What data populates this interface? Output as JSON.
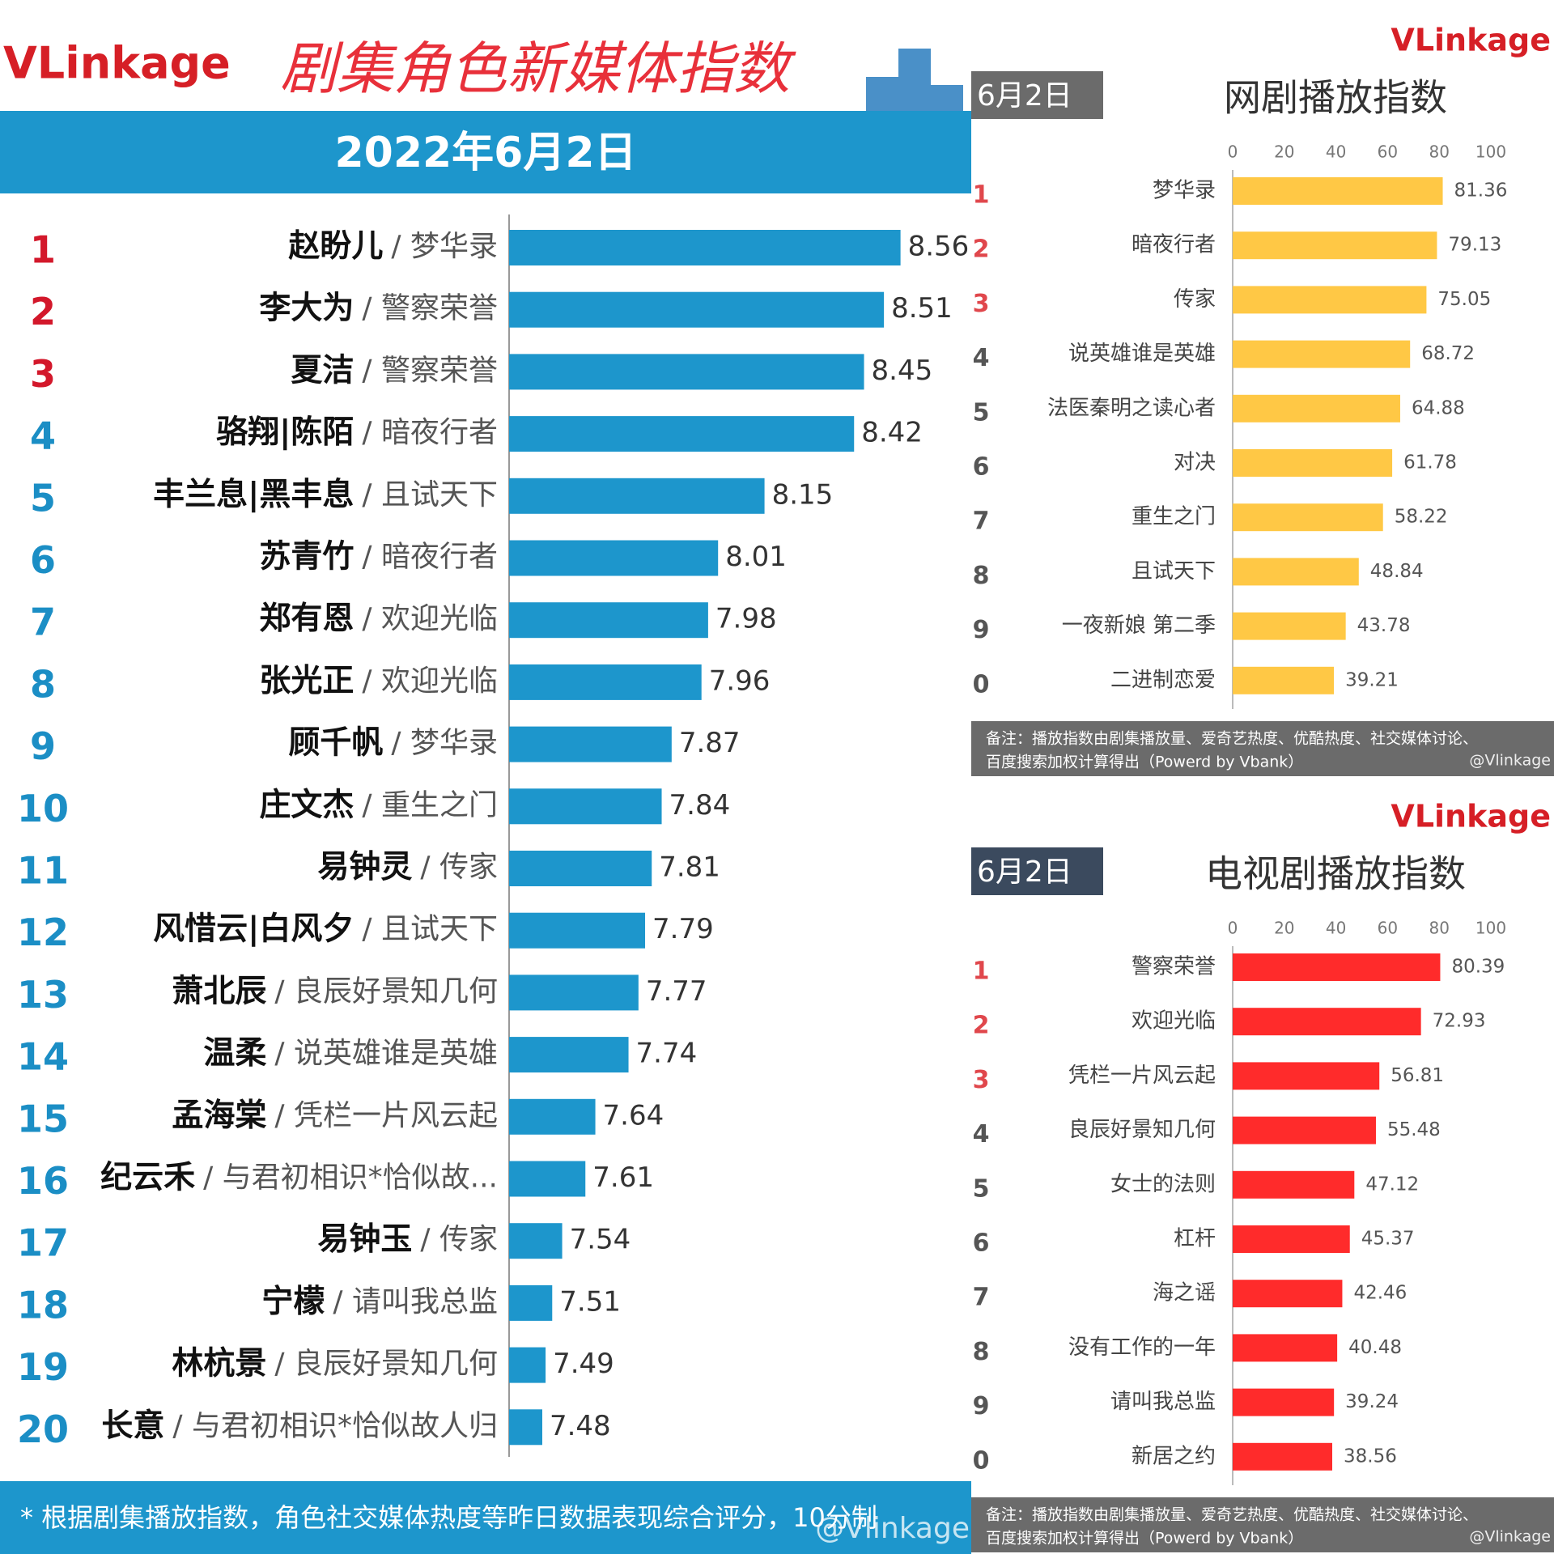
{
  "chart_data": [
    {
      "type": "bar",
      "orientation": "horizontal",
      "logo": "VLinkage",
      "title": "剧集角色新媒体指数",
      "subtitle": "2022年6月2日",
      "ranks": [
        1,
        2,
        3,
        4,
        5,
        6,
        7,
        8,
        9,
        10,
        11,
        12,
        13,
        14,
        15,
        16,
        17,
        18,
        19,
        20
      ],
      "categories": [
        "赵盼儿",
        "李大为",
        "夏洁",
        "骆翔|陈陌",
        "丰兰息|黑丰息",
        "苏青竹",
        "郑有恩",
        "张光正",
        "顾千帆",
        "庄文杰",
        "易钟灵",
        "风惜云|白风夕",
        "萧北辰",
        "温柔",
        "孟海棠",
        "纪云禾",
        "易钟玉",
        "宁檬",
        "林杭景",
        "长意"
      ],
      "dramas": [
        "/ 梦华录",
        "/ 警察荣誉",
        "/ 警察荣誉",
        "/ 暗夜行者",
        "/ 且试天下",
        "/ 暗夜行者",
        "/ 欢迎光临",
        "/ 欢迎光临",
        "/ 梦华录",
        "/ 重生之门",
        "/ 传家",
        "/ 且试天下",
        "/ 良辰好景知几何",
        "/ 说英雄谁是英雄",
        "/ 凭栏一片风云起",
        "/ 与君初相识*恰似故...",
        "/ 传家",
        "/ 请叫我总监",
        "/ 良辰好景知几何",
        "/ 与君初相识*恰似故人归"
      ],
      "values": [
        8.56,
        8.51,
        8.45,
        8.42,
        8.15,
        8.01,
        7.98,
        7.96,
        7.87,
        7.84,
        7.81,
        7.79,
        7.77,
        7.74,
        7.64,
        7.61,
        7.54,
        7.51,
        7.49,
        7.48
      ],
      "color": "#1d96cc",
      "xlim": [
        7.38,
        8.6
      ],
      "note": "* 根据剧集播放指数，角色社交媒体热度等昨日数据表现综合评分，10分制",
      "watermark": "@Vlinkage"
    },
    {
      "type": "bar",
      "orientation": "horizontal",
      "logo": "VLinkage",
      "tag": "6月2日",
      "title": "网剧播放指数",
      "ranks": [
        1,
        2,
        3,
        4,
        5,
        6,
        7,
        8,
        9,
        0
      ],
      "categories": [
        "梦华录",
        "暗夜行者",
        "传家",
        "说英雄谁是英雄",
        "法医秦明之读心者",
        "对决",
        "重生之门",
        "且试天下",
        "一夜新娘 第二季",
        "二进制恋爱"
      ],
      "values": [
        81.36,
        79.13,
        75.05,
        68.72,
        64.88,
        61.78,
        58.22,
        48.84,
        43.78,
        39.21
      ],
      "color": "#ffc845",
      "tag_color": "#6b6b6b",
      "xlim": [
        0,
        100
      ],
      "xticks": [
        0,
        20,
        40,
        60,
        80,
        100
      ],
      "notes": [
        "备注：播放指数由剧集播放量、爱奇艺热度、优酷热度、社交媒体讨论、",
        "百度搜索加权计算得出（Powerd by Vbank）"
      ],
      "watermark": "@Vlinkage"
    },
    {
      "type": "bar",
      "orientation": "horizontal",
      "logo": "VLinkage",
      "tag": "6月2日",
      "title": "电视剧播放指数",
      "ranks": [
        1,
        2,
        3,
        4,
        5,
        6,
        7,
        8,
        9,
        0
      ],
      "categories": [
        "警察荣誉",
        "欢迎光临",
        "凭栏一片风云起",
        "良辰好景知几何",
        "女士的法则",
        "杠杆",
        "海之谣",
        "没有工作的一年",
        "请叫我总监",
        "新居之约"
      ],
      "values": [
        80.39,
        72.93,
        56.81,
        55.48,
        47.12,
        45.37,
        42.46,
        40.48,
        39.24,
        38.56
      ],
      "color": "#ff2b2b",
      "tag_color": "#3b4a5e",
      "xlim": [
        0,
        100
      ],
      "xticks": [
        0,
        20,
        40,
        60,
        80,
        100
      ],
      "notes": [
        "备注：播放指数由剧集播放量、爱奇艺热度、优酷热度、社交媒体讨论、",
        "百度搜索加权计算得出（Powerd by Vbank）"
      ],
      "watermark": "@Vlinkage"
    }
  ]
}
